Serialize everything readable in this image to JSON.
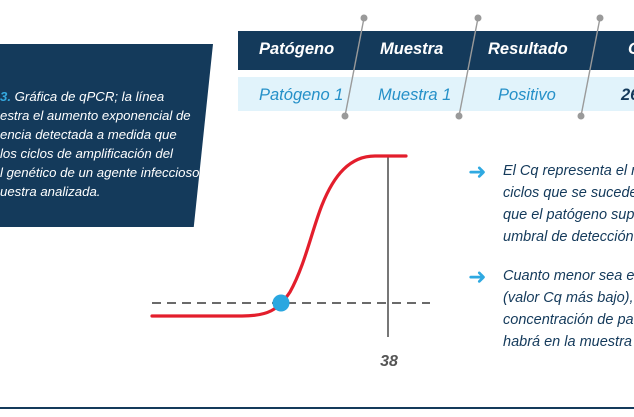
{
  "caption": {
    "figure_label": "3.",
    "lines": [
      "Gráfica de qPCR; la línea",
      "estra el aumento exponencial de",
      "encia detectada a medida que",
      "los ciclos de amplificación del",
      "l genético de un agente infeccioso",
      "uestra analizada."
    ]
  },
  "table": {
    "headers": [
      "Patógeno",
      "Muestra",
      "Resultado",
      "C"
    ],
    "row": [
      "Patógeno 1",
      "Muestra 1",
      "Positivo",
      "26"
    ]
  },
  "chart_data": {
    "type": "line",
    "x_tick_label": "38",
    "curve_color": "#e31e2c",
    "threshold_line": "dashed",
    "marker_color": "#2aa7e0"
  },
  "notes": [
    {
      "icon": "arrow-right-icon",
      "lines": [
        "El Cq representa el nú",
        "ciclos que se suceden",
        "que el patógeno supe",
        "umbral de detección"
      ]
    },
    {
      "icon": "arrow-right-icon",
      "lines": [
        "Cuanto menor sea el",
        "(valor Cq más bajo), r",
        "concentración de pato",
        "habrá en la muestra"
      ]
    }
  ],
  "colors": {
    "navy": "#143a5b",
    "light_blue_bg": "#e1f3fb",
    "accent_blue": "#2aa7e0",
    "red": "#e31e2c"
  }
}
